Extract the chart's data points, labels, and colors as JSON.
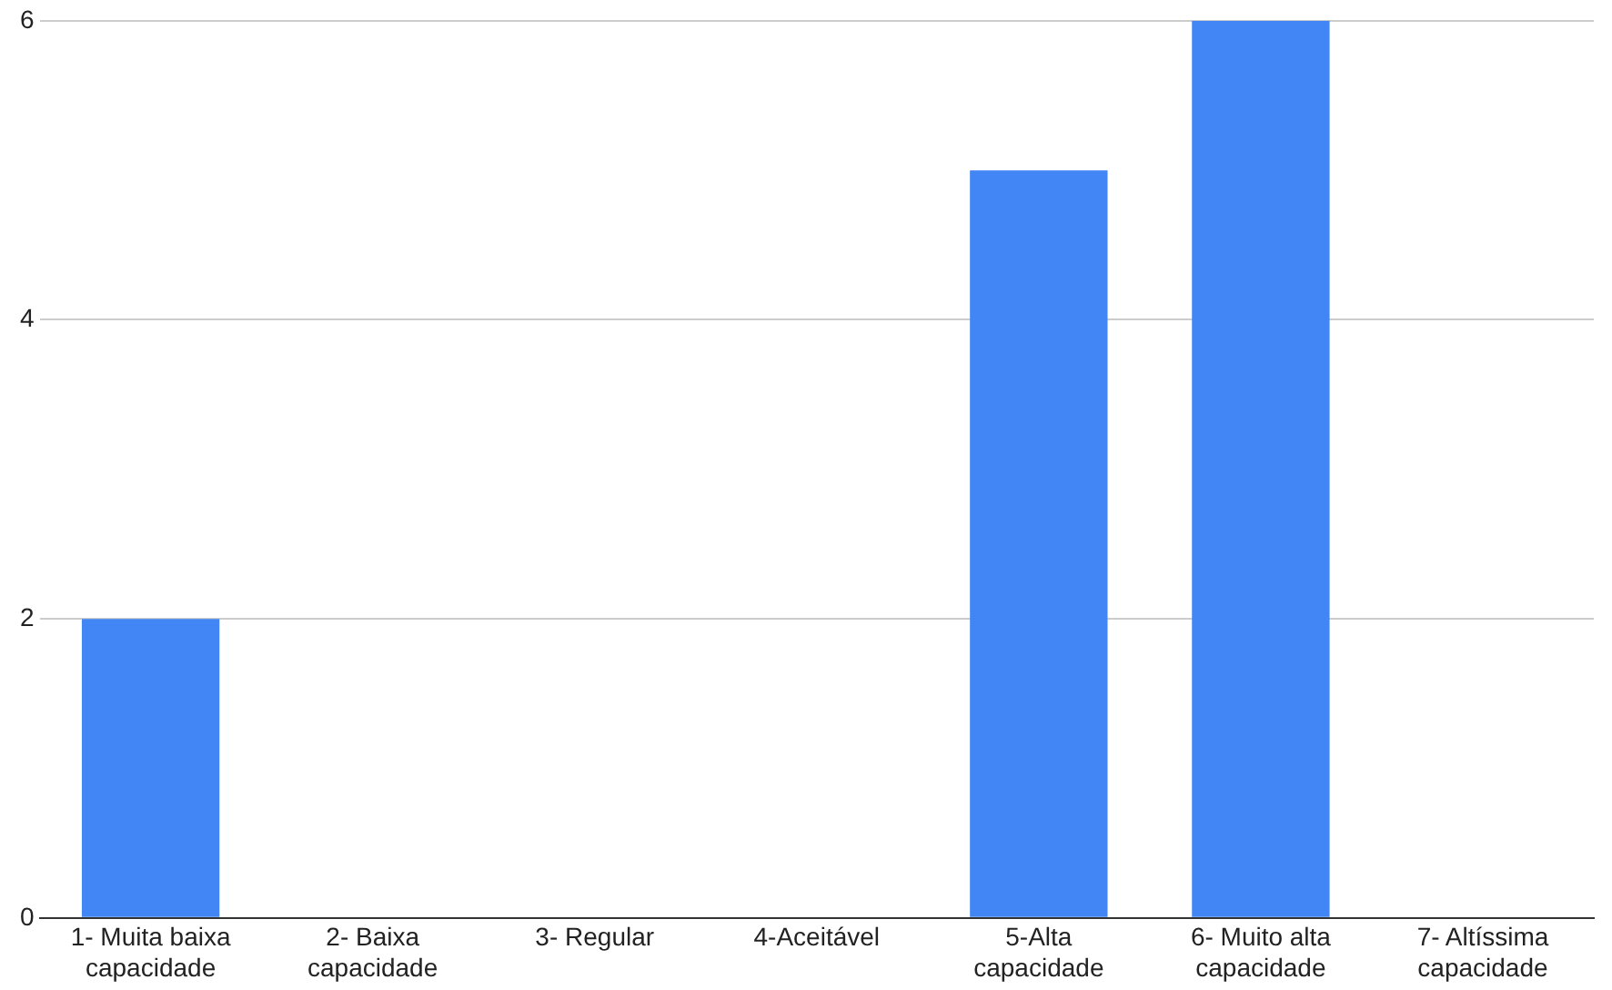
{
  "chart_data": {
    "type": "bar",
    "categories": [
      "1- Muita baixa capacidade",
      "2- Baixa capacidade",
      "3- Regular",
      "4-Aceitável",
      "5-Alta capacidade",
      "6- Muito alta capacidade",
      "7- Altíssima capacidade"
    ],
    "values": [
      2,
      0,
      0,
      0,
      5,
      6,
      0
    ],
    "color": "#4285f4",
    "ylim": [
      0,
      6
    ],
    "yticks": [
      0,
      2,
      4,
      6
    ],
    "grid": "y",
    "legend": false
  }
}
